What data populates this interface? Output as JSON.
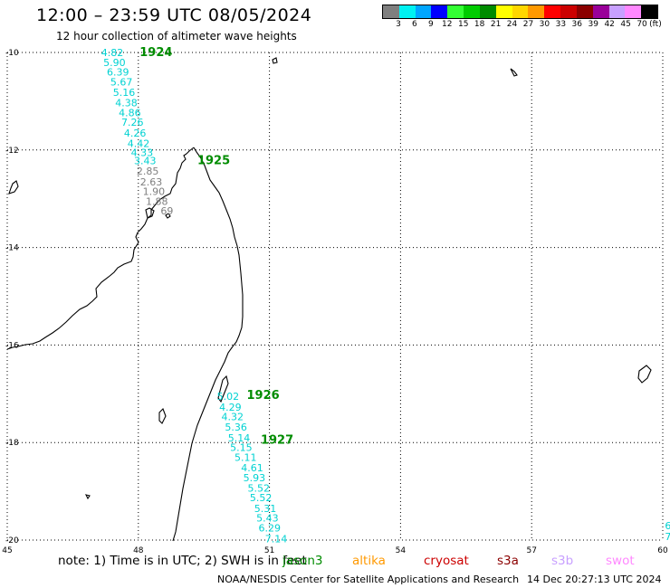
{
  "header": {
    "title": "12:00 – 23:59 UTC 08/05/2024",
    "subtitle": "12 hour collection of altimeter wave heights"
  },
  "legend": {
    "unit": "(ft)",
    "items": [
      {
        "label": "3",
        "color": "#7f7f7f"
      },
      {
        "label": "6",
        "color": "#00f2f2"
      },
      {
        "label": "9",
        "color": "#00a6ff"
      },
      {
        "label": "12",
        "color": "#0000ff"
      },
      {
        "label": "15",
        "color": "#33ff33"
      },
      {
        "label": "18",
        "color": "#00cc00"
      },
      {
        "label": "21",
        "color": "#008c00"
      },
      {
        "label": "24",
        "color": "#ffff00"
      },
      {
        "label": "27",
        "color": "#ffd700"
      },
      {
        "label": "30",
        "color": "#ff9900"
      },
      {
        "label": "33",
        "color": "#ff0000"
      },
      {
        "label": "36",
        "color": "#cc0000"
      },
      {
        "label": "39",
        "color": "#8b0000"
      },
      {
        "label": "42",
        "color": "#990099"
      },
      {
        "label": "45",
        "color": "#c8a0ff"
      },
      {
        "label": "70",
        "color": "#ff88ff"
      },
      {
        "label": "",
        "color": "#000000"
      }
    ]
  },
  "axes": {
    "lon_labels": [
      {
        "lon": 45,
        "label": "45"
      },
      {
        "lon": 48,
        "label": "48"
      },
      {
        "lon": 51,
        "label": "51"
      },
      {
        "lon": 54,
        "label": "54"
      },
      {
        "lon": 57,
        "label": "57"
      },
      {
        "lon": 60,
        "label": "60"
      }
    ],
    "lat_labels": [
      {
        "lat": -10,
        "label": "-10"
      },
      {
        "lat": -12,
        "label": "-12"
      },
      {
        "lat": -14,
        "label": "-14"
      },
      {
        "lat": -16,
        "label": "-16"
      },
      {
        "lat": -18,
        "label": "-18"
      },
      {
        "lat": -20,
        "label": "-20"
      }
    ],
    "lon_range": [
      45,
      60
    ],
    "lat_range": [
      -20,
      -10
    ]
  },
  "track_a": {
    "time_labels": [
      {
        "label": "1924",
        "lon": 48.03,
        "lat": -10.0
      },
      {
        "label": "1925",
        "lon": 49.35,
        "lat": -12.22
      }
    ],
    "values": [
      {
        "v": "4.82",
        "lon": 47.15,
        "lat": -10.0,
        "color": "#00d2d2"
      },
      {
        "v": "5.90",
        "lon": 47.2,
        "lat": -10.2,
        "color": "#00d2d2"
      },
      {
        "v": "6.39",
        "lon": 47.28,
        "lat": -10.4,
        "color": "#00d2d2"
      },
      {
        "v": "5.67",
        "lon": 47.36,
        "lat": -10.6,
        "color": "#00d2d2"
      },
      {
        "v": "5.16",
        "lon": 47.42,
        "lat": -10.82,
        "color": "#00d2d2"
      },
      {
        "v": "4.38",
        "lon": 47.47,
        "lat": -11.03,
        "color": "#00d2d2"
      },
      {
        "v": "4.86",
        "lon": 47.55,
        "lat": -11.23,
        "color": "#00d2d2"
      },
      {
        "v": "7.26",
        "lon": 47.61,
        "lat": -11.43,
        "color": "#00d2d2"
      },
      {
        "v": "4.26",
        "lon": 47.67,
        "lat": -11.65,
        "color": "#00d2d2"
      },
      {
        "v": "4.42",
        "lon": 47.75,
        "lat": -11.86,
        "color": "#00d2d2"
      },
      {
        "v": "4.33",
        "lon": 47.83,
        "lat": -12.05,
        "color": "#00d2d2"
      },
      {
        "v": "3.43",
        "lon": 47.9,
        "lat": -12.22,
        "color": "#00d2d2"
      },
      {
        "v": "2.85",
        "lon": 47.96,
        "lat": -12.43,
        "color": "#7f7f7f"
      },
      {
        "v": "2.63",
        "lon": 48.04,
        "lat": -12.65,
        "color": "#7f7f7f"
      },
      {
        "v": "1.90",
        "lon": 48.1,
        "lat": -12.85,
        "color": "#7f7f7f"
      },
      {
        "v": "1.88",
        "lon": 48.17,
        "lat": -13.05,
        "color": "#7f7f7f"
      },
      {
        "v": "69",
        "lon": 48.51,
        "lat": -13.25,
        "color": "#7f7f7f"
      }
    ]
  },
  "track_b": {
    "time_labels": [
      {
        "label": "1926",
        "lon": 50.48,
        "lat": -17.03
      },
      {
        "label": "1927",
        "lon": 50.8,
        "lat": -17.95
      }
    ],
    "values": [
      {
        "v": "5.02",
        "lon": 49.8,
        "lat": -17.05,
        "color": "#00d2d2"
      },
      {
        "v": "4.29",
        "lon": 49.85,
        "lat": -17.27,
        "color": "#00d2d2"
      },
      {
        "v": "4.32",
        "lon": 49.9,
        "lat": -17.47,
        "color": "#00d2d2"
      },
      {
        "v": "5.36",
        "lon": 49.98,
        "lat": -17.68,
        "color": "#00d2d2"
      },
      {
        "v": "5.14",
        "lon": 50.05,
        "lat": -17.9,
        "color": "#00d2d2"
      },
      {
        "v": "5.15",
        "lon": 50.1,
        "lat": -18.1,
        "color": "#00d2d2"
      },
      {
        "v": "5.11",
        "lon": 50.2,
        "lat": -18.3,
        "color": "#00d2d2"
      },
      {
        "v": "4.61",
        "lon": 50.35,
        "lat": -18.52,
        "color": "#00d2d2"
      },
      {
        "v": "5.93",
        "lon": 50.4,
        "lat": -18.72,
        "color": "#00d2d2"
      },
      {
        "v": "5.52",
        "lon": 50.5,
        "lat": -18.93,
        "color": "#00d2d2"
      },
      {
        "v": "5.52",
        "lon": 50.55,
        "lat": -19.13,
        "color": "#00d2d2"
      },
      {
        "v": "5.31",
        "lon": 50.65,
        "lat": -19.35,
        "color": "#00d2d2"
      },
      {
        "v": "5.43",
        "lon": 50.7,
        "lat": -19.55,
        "color": "#00d2d2"
      },
      {
        "v": "6.29",
        "lon": 50.75,
        "lat": -19.75,
        "color": "#00d2d2"
      },
      {
        "v": "7.14",
        "lon": 50.9,
        "lat": -19.97,
        "color": "#00d2d2"
      }
    ]
  },
  "track_c": {
    "values": [
      {
        "v": "6",
        "lon": 60.05,
        "lat": -19.7,
        "color": "#00d2d2"
      },
      {
        "v": "7",
        "lon": 60.05,
        "lat": -19.93,
        "color": "#00d2d2"
      }
    ]
  },
  "footer": {
    "note": "note:  1) Time is in UTC; 2) SWH is in feet",
    "satellites": [
      {
        "name": "jason3",
        "color": "#008c00"
      },
      {
        "name": "altika",
        "color": "#ff9900"
      },
      {
        "name": "cryosat",
        "color": "#cc0000"
      },
      {
        "name": "s3a",
        "color": "#8b0000"
      },
      {
        "name": "s3b",
        "color": "#c8a0ff"
      },
      {
        "name": "swot",
        "color": "#ff88ff"
      }
    ],
    "credit": "NOAA/NESDIS Center for Satellite Applications and Research",
    "timestamp": "14 Dec 20:27:13 UTC 2024"
  }
}
